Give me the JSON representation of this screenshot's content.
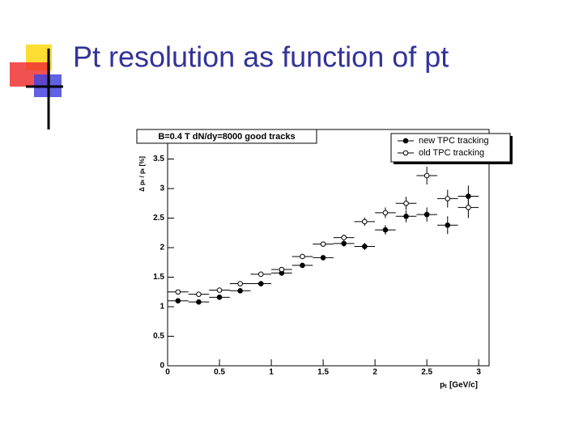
{
  "slide_title": "Pt resolution as function of pt",
  "chart_data": {
    "type": "scatter",
    "title": "B=0.4 T  dN/dy=8000  good tracks",
    "xlabel": "pₜ [GeV/c]",
    "ylabel": "Δ pₜ / pₜ [%]",
    "x": [
      0.1,
      0.3,
      0.5,
      0.7,
      0.9,
      1.1,
      1.3,
      1.5,
      1.7,
      1.9,
      2.1,
      2.3,
      2.5,
      2.7,
      2.9
    ],
    "xerr": 0.1,
    "series": [
      {
        "name": "new TPC tracking",
        "color": "#000000",
        "filled": true,
        "values": [
          1.1,
          1.08,
          1.16,
          1.27,
          1.39,
          1.57,
          1.7,
          1.83,
          2.07,
          2.02,
          2.3,
          2.53,
          2.56,
          2.38,
          2.87
        ],
        "yerr": [
          0.03,
          0.03,
          0.03,
          0.03,
          0.03,
          0.03,
          0.03,
          0.04,
          0.05,
          0.06,
          0.08,
          0.1,
          0.12,
          0.15,
          0.18
        ]
      },
      {
        "name": "old TPC tracking",
        "color": "#000000",
        "filled": false,
        "values": [
          1.25,
          1.21,
          1.28,
          1.39,
          1.55,
          1.63,
          1.85,
          2.06,
          2.17,
          2.44,
          2.59,
          2.75,
          3.22,
          2.83,
          2.68
        ],
        "yerr": [
          0.03,
          0.03,
          0.03,
          0.03,
          0.03,
          0.03,
          0.04,
          0.04,
          0.05,
          0.07,
          0.09,
          0.11,
          0.15,
          0.15,
          0.18
        ]
      }
    ],
    "xlim": [
      0,
      3.1
    ],
    "ylim": [
      0,
      4
    ],
    "xticks": [
      0,
      0.5,
      1,
      1.5,
      2,
      2.5,
      3
    ],
    "yticks": [
      0,
      0.5,
      1,
      1.5,
      2,
      2.5,
      3,
      3.5
    ],
    "legend": "upper right"
  }
}
